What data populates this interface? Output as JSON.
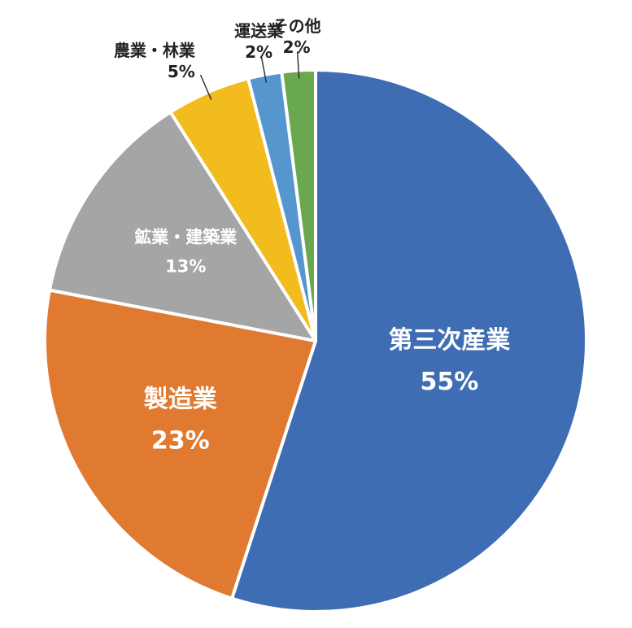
{
  "chart_data": {
    "type": "pie",
    "categories": [
      "第三次産業",
      "製造業",
      "鉱業・建築業",
      "農業・林業",
      "運送業",
      "その他"
    ],
    "values": [
      55,
      23,
      13,
      5,
      2,
      2
    ],
    "value_labels": [
      "55%",
      "23%",
      "13%",
      "5%",
      "2%",
      "2%"
    ],
    "colors": [
      "#3f6db3",
      "#e07a31",
      "#a5a5a5",
      "#f2bb1e",
      "#5596cf",
      "#6aa84f"
    ]
  }
}
